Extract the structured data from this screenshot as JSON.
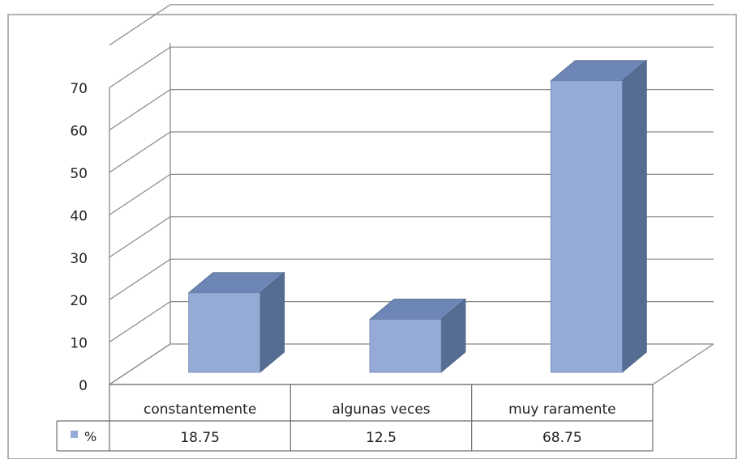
{
  "chart_data": {
    "type": "bar",
    "style": "3d-column-with-data-table",
    "categories": [
      "constantemente",
      "algunas veces",
      "muy raramente"
    ],
    "series": [
      {
        "name": "%",
        "values": [
          18.75,
          12.5,
          68.75
        ],
        "color": "#95abd6"
      }
    ],
    "ylim": [
      0,
      70
    ],
    "yticks": [
      "0",
      "10",
      "20",
      "30",
      "40",
      "50",
      "60",
      "70"
    ],
    "grid": true,
    "legend": "data-table",
    "table": {
      "legend_label": "%",
      "cells": [
        "18.75",
        "12.5",
        "68.75"
      ]
    }
  },
  "colors": {
    "bar_front": "#95abd6",
    "bar_top": "#6d86b5",
    "bar_side": "#566d93",
    "gridline": "#888888",
    "text": "#222222"
  }
}
